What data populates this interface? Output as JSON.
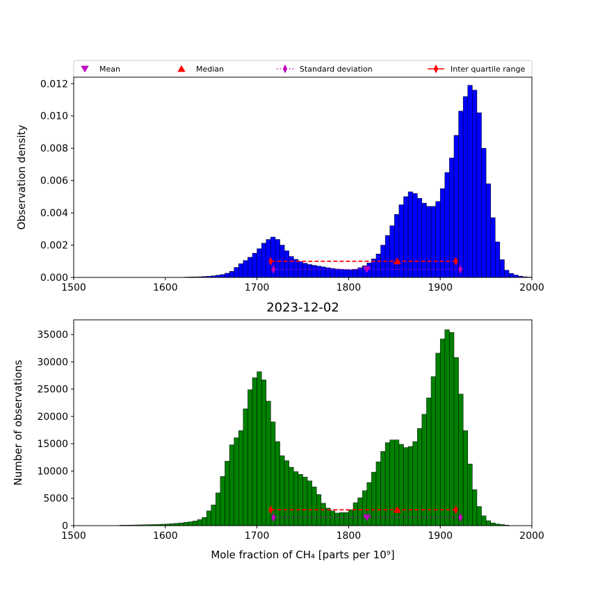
{
  "legend": {
    "placement": "top",
    "entries": [
      {
        "label": "Mean",
        "marker": "triangle-down",
        "color": "#bf00bf"
      },
      {
        "label": "Median",
        "marker": "triangle-up",
        "color": "#ff0000"
      },
      {
        "label": "Standard deviation",
        "marker": "thin-diamond",
        "line": "dotted",
        "color": "#bf00bf"
      },
      {
        "label": "Inter quartile range",
        "marker": "thin-diamond",
        "line": "solid",
        "color": "#ff0000"
      }
    ]
  },
  "chart_data": [
    {
      "type": "bar",
      "title": "",
      "xlabel": "",
      "ylabel": "Observation density",
      "xlim": [
        1500,
        2000
      ],
      "ylim": [
        0,
        0.0124
      ],
      "xticks": [
        "1500",
        "1600",
        "1700",
        "1800",
        "1900",
        "2000"
      ],
      "yticks": [
        "0.000",
        "0.002",
        "0.004",
        "0.006",
        "0.008",
        "0.010",
        "0.012"
      ],
      "bar_color": "#0000ff",
      "bin_start": 1500,
      "bin_width": 5,
      "values": [
        0,
        0,
        0,
        0,
        0,
        0,
        0,
        0,
        0,
        0,
        0,
        0,
        0,
        0,
        0,
        0,
        0,
        0,
        0,
        0,
        0,
        0,
        0,
        0,
        2e-05,
        3e-05,
        3e-05,
        4e-05,
        6e-05,
        7e-05,
        0.0001,
        0.00014,
        0.00018,
        0.00026,
        0.00038,
        0.00062,
        0.00085,
        0.00105,
        0.00125,
        0.0015,
        0.00178,
        0.00212,
        0.00235,
        0.0025,
        0.00235,
        0.002,
        0.00165,
        0.0013,
        0.00112,
        0.00098,
        0.00088,
        0.0008,
        0.00075,
        0.0007,
        0.00065,
        0.0006,
        0.00056,
        0.00052,
        0.0005,
        0.00048,
        0.00047,
        0.0005,
        0.0006,
        0.00072,
        0.0009,
        0.00115,
        0.00145,
        0.002,
        0.0026,
        0.0032,
        0.0039,
        0.0045,
        0.005,
        0.0053,
        0.0052,
        0.0049,
        0.0046,
        0.0044,
        0.0044,
        0.0047,
        0.0055,
        0.0065,
        0.0074,
        0.0088,
        0.0103,
        0.0112,
        0.0119,
        0.0116,
        0.0102,
        0.008,
        0.0058,
        0.0037,
        0.0022,
        0.0011,
        0.00045,
        0.00025,
        0.00015,
        8e-05,
        4e-05,
        2e-05
      ],
      "stats": {
        "mean": {
          "x": 1820,
          "y": 0.0005
        },
        "median": {
          "x": 1853,
          "y": 0.001
        },
        "std_range": {
          "x": [
            1718,
            1922
          ],
          "y": 0.0005
        },
        "iqr_range": {
          "x": [
            1715,
            1917
          ],
          "y": 0.001
        }
      }
    },
    {
      "type": "bar",
      "title": "2023-12-02",
      "xlabel": "Mole fraction of CH₄ [parts per 10⁹]",
      "ylabel": "Number of observations",
      "xlim": [
        1500,
        2000
      ],
      "ylim": [
        0,
        37700
      ],
      "xticks": [
        "1500",
        "1600",
        "1700",
        "1800",
        "1900",
        "2000"
      ],
      "yticks": [
        "0",
        "5000",
        "10000",
        "15000",
        "20000",
        "25000",
        "30000",
        "35000"
      ],
      "bar_color": "#008000",
      "bin_start": 1500,
      "bin_width": 5,
      "values": [
        0,
        0,
        0,
        0,
        0,
        0,
        0,
        0,
        0,
        0,
        80,
        90,
        100,
        120,
        140,
        160,
        180,
        200,
        230,
        260,
        300,
        360,
        420,
        500,
        600,
        700,
        850,
        1100,
        1500,
        2700,
        3800,
        6000,
        9000,
        11800,
        14800,
        16100,
        17400,
        21400,
        24900,
        27100,
        28200,
        26700,
        22800,
        19000,
        15400,
        12800,
        11900,
        10700,
        9900,
        9400,
        8900,
        8200,
        7100,
        5700,
        4100,
        3200,
        2700,
        2300,
        2400,
        2400,
        2900,
        4200,
        5100,
        6400,
        7900,
        9800,
        11700,
        13600,
        15200,
        15700,
        15700,
        14900,
        14300,
        14500,
        15400,
        17800,
        20400,
        23400,
        27300,
        31600,
        34200,
        35900,
        35400,
        30800,
        24100,
        17400,
        11300,
        6600,
        3500,
        1800,
        900,
        500,
        300,
        200,
        100,
        0,
        0,
        0,
        0,
        0
      ],
      "stats": {
        "mean": {
          "x": 1820,
          "y": 1500
        },
        "median": {
          "x": 1853,
          "y": 2900
        },
        "std_range": {
          "x": [
            1718,
            1922
          ],
          "y": 1500
        },
        "iqr_range": {
          "x": [
            1715,
            1917
          ],
          "y": 2900
        }
      }
    }
  ]
}
